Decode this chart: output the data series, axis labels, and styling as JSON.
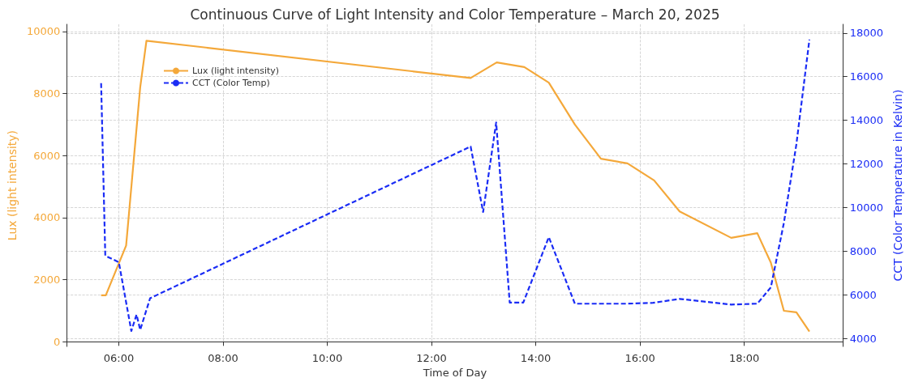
{
  "chart_data": {
    "type": "line",
    "title": "Continuous Curve of Light Intensity and Color Temperature – March 20, 2025",
    "xlabel": "Time of Day",
    "ylabel": "Lux (light intensity)",
    "y2label": "CCT (Color Temperature in Kelvin)",
    "xlim": [
      5.0,
      19.9
    ],
    "xticks": [
      {
        "value": 6,
        "label": "06:00"
      },
      {
        "value": 8,
        "label": "08:00"
      },
      {
        "value": 10,
        "label": "10:00"
      },
      {
        "value": 12,
        "label": "12:00"
      },
      {
        "value": 14,
        "label": "14:00"
      },
      {
        "value": 16,
        "label": "16:00"
      },
      {
        "value": 18,
        "label": "18:00"
      }
    ],
    "ylim": [
      -150,
      10230
    ],
    "yticks": [
      0,
      2000,
      4000,
      6000,
      8000,
      10000
    ],
    "y2lim": [
      3640,
      18400
    ],
    "y2ticks": [
      4000,
      6000,
      8000,
      10000,
      12000,
      14000,
      16000,
      18000
    ],
    "grid": true,
    "legend": "top left",
    "marker": "none",
    "series": [
      {
        "name": "Lux (light intensity)",
        "color": "#f4a83a",
        "line_style": "solid",
        "x": [
          5.66,
          5.75,
          6.14,
          6.41,
          6.53,
          12.75,
          13.25,
          13.78,
          14.25,
          14.75,
          15.25,
          15.76,
          16.27,
          16.76,
          17.75,
          18.25,
          18.51,
          18.76,
          19.0,
          19.25
        ],
        "values": [
          1500,
          1500,
          3100,
          8200,
          9700,
          8500,
          9000,
          8850,
          8350,
          7000,
          5900,
          5750,
          5200,
          4200,
          3350,
          3500,
          2550,
          1000,
          950,
          330
        ]
      },
      {
        "name": "CCT (Color Temp)",
        "color": "#1a2cf5",
        "line_style": "dashed",
        "axis": "y2",
        "x": [
          5.66,
          5.74,
          6.0,
          6.24,
          6.34,
          6.41,
          6.6,
          12.75,
          12.99,
          13.24,
          13.5,
          13.76,
          14.25,
          14.75,
          15.25,
          15.76,
          16.25,
          16.76,
          17.75,
          18.25,
          18.51,
          18.76,
          19.0,
          19.25
        ],
        "values": [
          15700,
          7800,
          7500,
          4350,
          5100,
          4400,
          5850,
          12800,
          9800,
          13900,
          5650,
          5650,
          8650,
          5600,
          5600,
          5600,
          5640,
          5820,
          5560,
          5600,
          6350,
          9300,
          12900,
          17700
        ]
      }
    ]
  }
}
